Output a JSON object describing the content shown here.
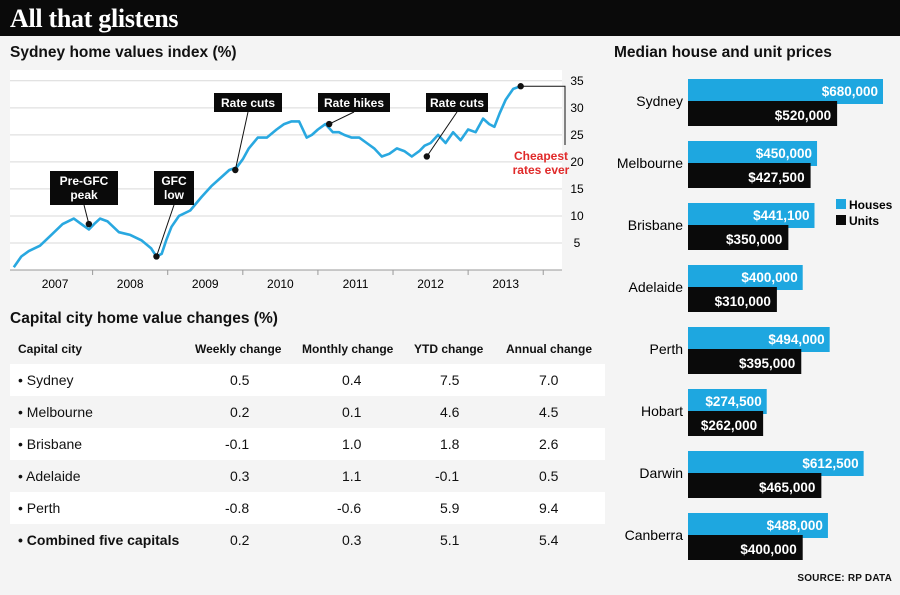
{
  "header": {
    "title": "All that glistens"
  },
  "source": "SOURCE: RP DATA",
  "line_chart_title": "Sydney home values index (%)",
  "bar_chart_title": "Median house and unit prices",
  "table": {
    "title": "Capital city home value changes (%)",
    "headers": [
      "Capital city",
      "Weekly change",
      "Monthly change",
      "YTD change",
      "Annual change"
    ],
    "rows": [
      [
        "• Sydney",
        "0.5",
        "0.4",
        "7.5",
        "7.0"
      ],
      [
        "• Melbourne",
        "0.2",
        "0.1",
        "4.6",
        "4.5"
      ],
      [
        "• Brisbane",
        "-0.1",
        "1.0",
        "1.8",
        "2.6"
      ],
      [
        "• Adelaide",
        "0.3",
        "1.1",
        "-0.1",
        "0.5"
      ],
      [
        "• Perth",
        "-0.8",
        "-0.6",
        "5.9",
        "9.4"
      ],
      [
        "• Combined five capitals",
        "0.2",
        "0.3",
        "5.1",
        "5.4"
      ]
    ]
  },
  "chart_data": [
    {
      "type": "line",
      "title": "Sydney home values index (%)",
      "xlabel": "",
      "ylabel": "",
      "x_ticks": [
        "2007",
        "2008",
        "2009",
        "2010",
        "2011",
        "2012",
        "2013"
      ],
      "y_ticks": [
        5,
        10,
        15,
        20,
        25,
        30,
        35
      ],
      "xlim": [
        2006.4,
        2013.75
      ],
      "ylim": [
        0,
        37
      ],
      "grid": true,
      "series": [
        {
          "x": [
            2006.45,
            2006.55,
            2006.65,
            2006.8,
            2006.95,
            2007.1,
            2007.25,
            2007.35,
            2007.45,
            2007.52,
            2007.6,
            2007.7,
            2007.85,
            2008.0,
            2008.15,
            2008.28,
            2008.35,
            2008.42,
            2008.48,
            2008.55,
            2008.65,
            2008.8,
            2008.95,
            2009.08,
            2009.2,
            2009.32,
            2009.42,
            2009.5,
            2009.58,
            2009.7,
            2009.82,
            2009.95,
            2010.05,
            2010.15,
            2010.25,
            2010.35,
            2010.42,
            2010.5,
            2010.6,
            2010.7,
            2010.78,
            2010.85,
            2010.95,
            2011.05,
            2011.15,
            2011.25,
            2011.35,
            2011.45,
            2011.55,
            2011.65,
            2011.75,
            2011.85,
            2011.92,
            2012.0,
            2012.1,
            2012.2,
            2012.3,
            2012.4,
            2012.5,
            2012.6,
            2012.7,
            2012.78,
            2012.85,
            2012.92,
            2013.0,
            2013.1,
            2013.2
          ],
          "y": [
            0.5,
            2.5,
            3.5,
            4.5,
            6.5,
            8.5,
            9.5,
            8.5,
            7.5,
            8.5,
            9.5,
            9.0,
            7.0,
            6.5,
            5.5,
            4.0,
            2.5,
            3.0,
            5.5,
            8.0,
            10.0,
            11.0,
            13.5,
            15.5,
            17.0,
            18.5,
            19.0,
            20.5,
            22.5,
            24.5,
            24.5,
            26.0,
            27.0,
            27.5,
            27.5,
            24.5,
            25.0,
            26.0,
            27.0,
            25.5,
            25.5,
            25.0,
            24.5,
            24.5,
            23.5,
            22.5,
            21.0,
            21.5,
            22.5,
            22.0,
            21.0,
            22.0,
            23.0,
            23.5,
            25.0,
            23.5,
            25.5,
            24.0,
            26.0,
            25.5,
            28.0,
            27.0,
            26.5,
            29.0,
            31.5,
            33.5,
            34.0
          ]
        }
      ],
      "annotations": [
        {
          "text": "Pre-GFC peak",
          "x": 2007.45,
          "y": 8.5
        },
        {
          "text": "GFC low",
          "x": 2008.35,
          "y": 2.5
        },
        {
          "text": "Rate cuts",
          "x": 2009.4,
          "y": 18.5
        },
        {
          "text": "Rate hikes",
          "x": 2010.65,
          "y": 27.0
        },
        {
          "text": "Rate cuts",
          "x": 2011.95,
          "y": 21.0
        },
        {
          "text": "Cheapest rates ever",
          "x": 2013.2,
          "y": 34.0
        }
      ],
      "colors": {
        "line": "#29a8e0",
        "callout": "#0a0a0a",
        "highlight": "#e02a2a"
      }
    },
    {
      "type": "bar",
      "title": "Median house and unit prices",
      "categories": [
        "Sydney",
        "Melbourne",
        "Brisbane",
        "Adelaide",
        "Perth",
        "Hobart",
        "Darwin",
        "Canberra"
      ],
      "series": [
        {
          "name": "Houses",
          "color": "#1ea7e0",
          "values": [
            680000,
            450000,
            441100,
            400000,
            494000,
            274500,
            612500,
            488000
          ],
          "labels": [
            "$680,000",
            "$450,000",
            "$441,100",
            "$400,000",
            "$494,000",
            "$274,500",
            "$612,500",
            "$488,000"
          ]
        },
        {
          "name": "Units",
          "color": "#0a0a0a",
          "values": [
            520000,
            427500,
            350000,
            310000,
            395000,
            262000,
            465000,
            400000
          ],
          "labels": [
            "$520,000",
            "$427,500",
            "$350,000",
            "$310,000",
            "$395,000",
            "$262,000",
            "$465,000",
            "$400,000"
          ]
        }
      ],
      "legend": "right"
    }
  ]
}
